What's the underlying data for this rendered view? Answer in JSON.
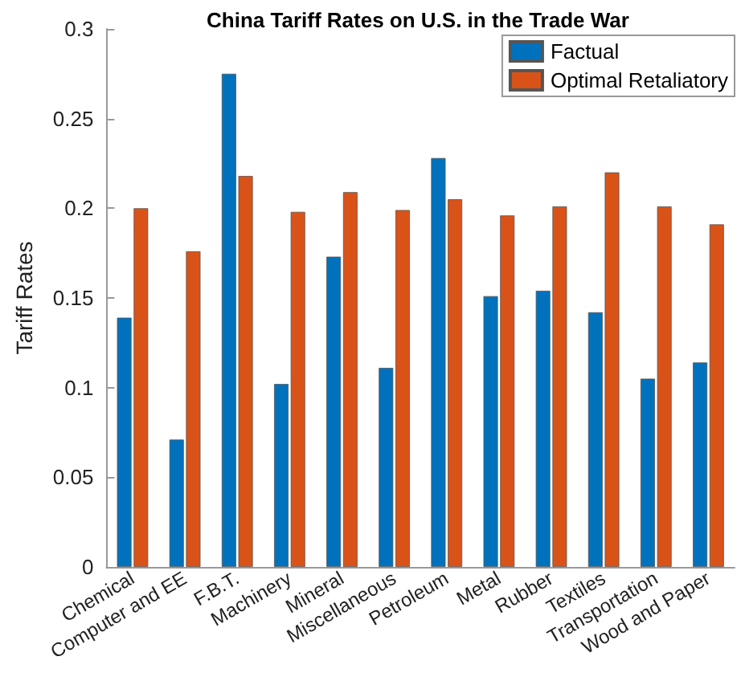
{
  "chart_data": {
    "type": "bar",
    "title": "China Tariff Rates on U.S. in the Trade War",
    "ylabel": "Tariff Rates",
    "categories": [
      "Chemical",
      "Computer and EE",
      "F.B.T.",
      "Machinery",
      "Mineral",
      "Miscellaneous",
      "Petroleum",
      "Metal",
      "Rubber",
      "Textiles",
      "Transportation",
      "Wood and Paper"
    ],
    "series": [
      {
        "name": "Factual",
        "color": "#0072bd",
        "values": [
          0.139,
          0.071,
          0.275,
          0.102,
          0.173,
          0.111,
          0.228,
          0.151,
          0.154,
          0.142,
          0.105,
          0.114
        ]
      },
      {
        "name": "Optimal Retaliatory",
        "color": "#d95319",
        "values": [
          0.2,
          0.176,
          0.218,
          0.198,
          0.209,
          0.199,
          0.205,
          0.196,
          0.201,
          0.22,
          0.201,
          0.191
        ]
      }
    ],
    "ylim": [
      0,
      0.3
    ],
    "yticks": [
      0,
      0.05,
      0.1,
      0.15,
      0.2,
      0.25,
      0.3
    ],
    "grid": false,
    "legend": "top right"
  }
}
